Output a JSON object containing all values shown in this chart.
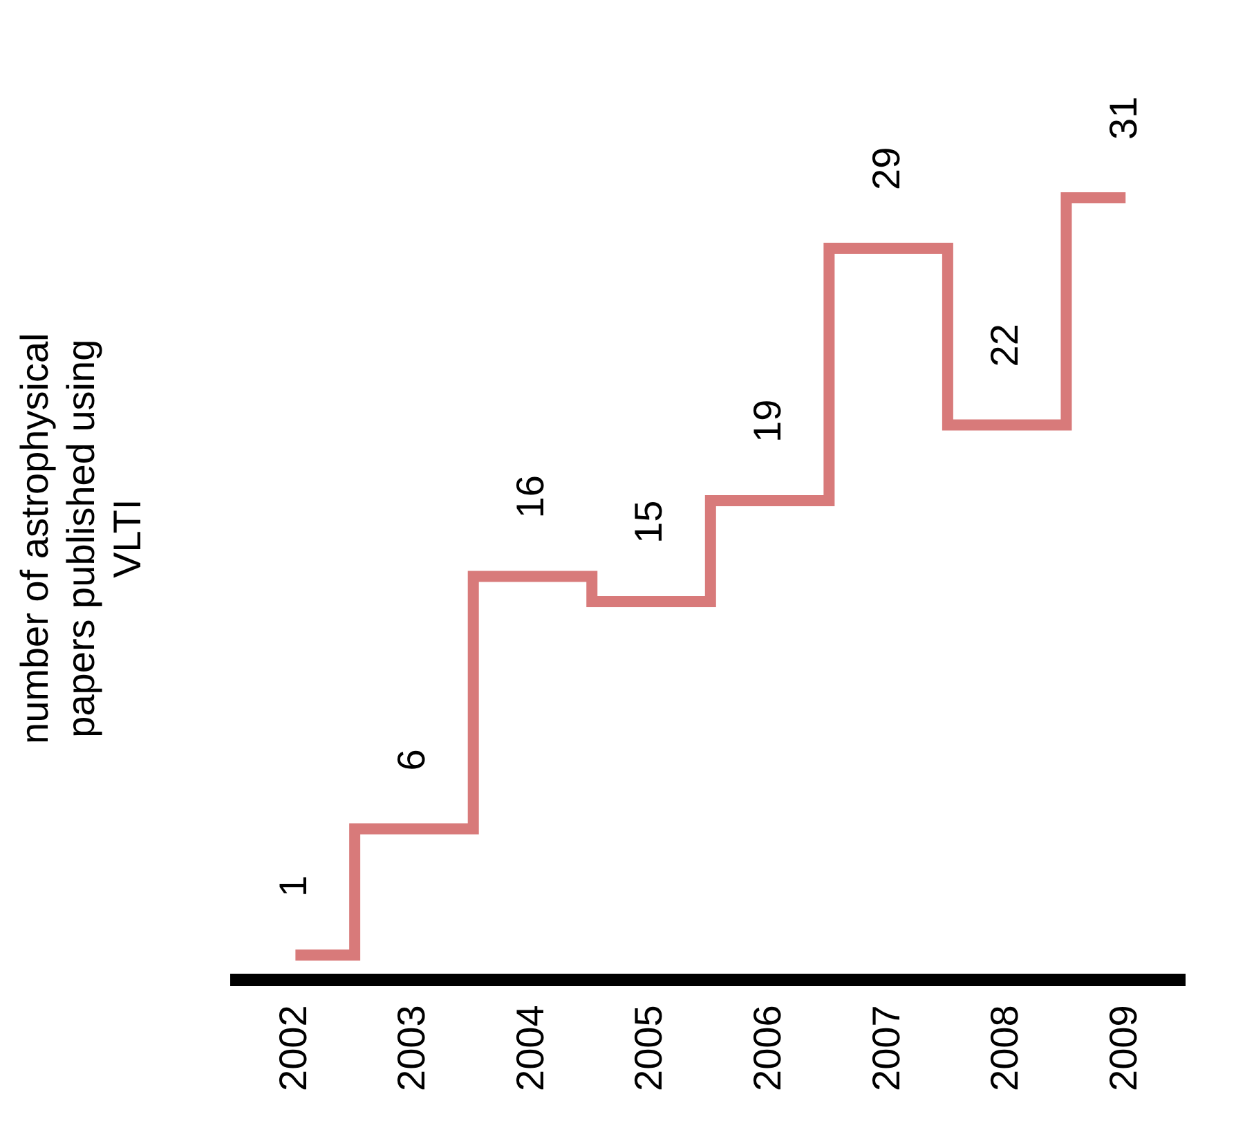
{
  "chart_data": {
    "type": "step",
    "ylabel": "number of astrophysical papers published using VLTI",
    "categories": [
      "2002",
      "2003",
      "2004",
      "2005",
      "2006",
      "2007",
      "2008",
      "2009"
    ],
    "series": [
      {
        "color": "#d87a7a",
        "values": [
          1,
          6,
          16,
          15,
          19,
          29,
          22,
          31
        ]
      }
    ],
    "data_labels": true
  }
}
